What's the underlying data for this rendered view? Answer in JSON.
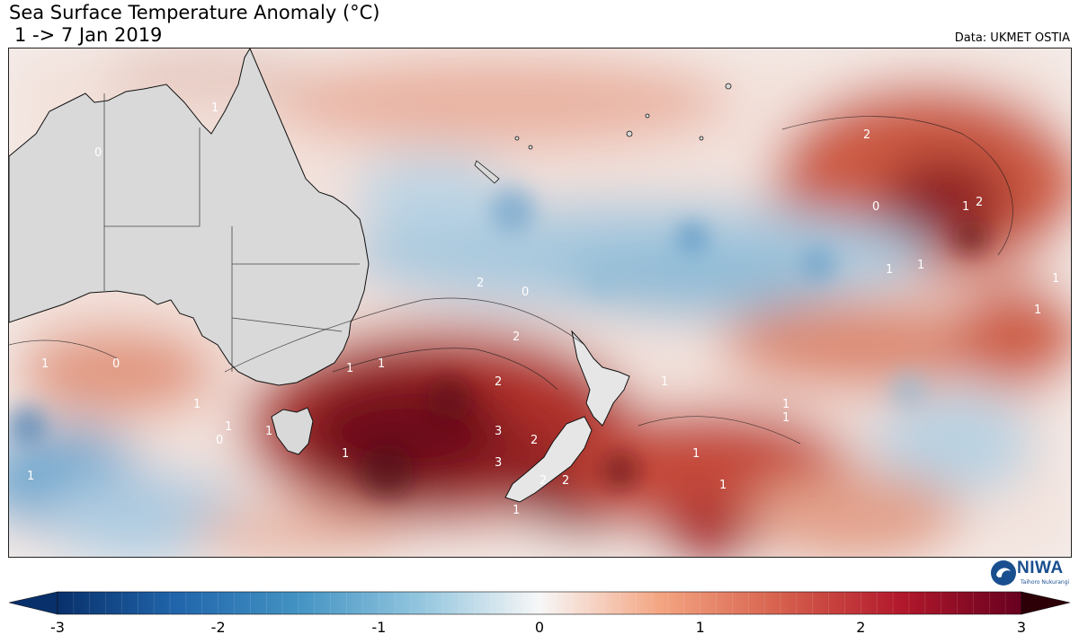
{
  "header": {
    "title": "Sea Surface Temperature Anomaly (°C)",
    "subtitle": " 1 -> 7 Jan 2019",
    "source": "Data: UKMET OSTIA"
  },
  "logo": {
    "name": "NIWA",
    "tagline": "Taihoro Nukurangi"
  },
  "map": {
    "region": "Australia / New Zealand / Southwest Pacific",
    "land_color": "#d9d9d9",
    "contour_labels": [
      "0",
      "1",
      "0",
      "1",
      "1",
      "0",
      "1",
      "1",
      "1",
      "1",
      "2",
      "3",
      "3",
      "2",
      "2",
      "2",
      "1",
      "1",
      "1",
      "2",
      "1",
      "2",
      "1",
      "0",
      "1",
      "1",
      "2",
      "1",
      "1",
      "1",
      "1",
      "0",
      "1",
      "1",
      "2"
    ]
  },
  "colorbar": {
    "min": -3,
    "max": 3,
    "tick_labels": [
      "-3",
      "-2",
      "-1",
      "0",
      "1",
      "2",
      "3"
    ],
    "colors": [
      "#08306b",
      "#2166ac",
      "#4393c3",
      "#92c5de",
      "#f7f7f7",
      "#f4a582",
      "#d6604d",
      "#b2182b",
      "#67001f"
    ]
  }
}
